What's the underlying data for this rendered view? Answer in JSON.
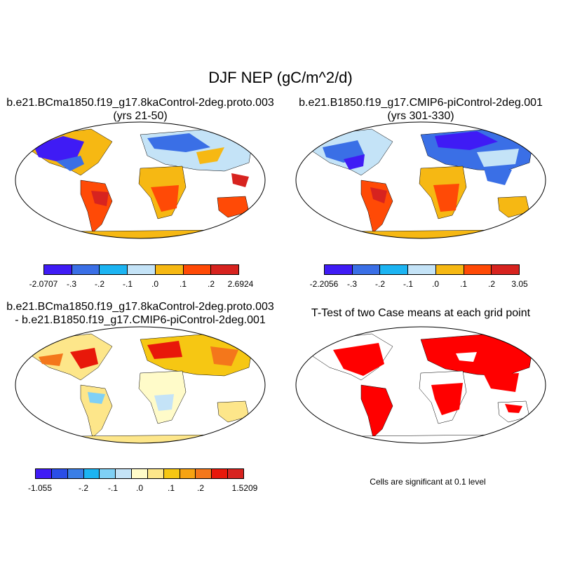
{
  "title": "DJF NEP (gC/m^2/d)",
  "panels": [
    {
      "line1": "b.e21.BCma1850.f19_g17.8kaControl-2deg.proto.003",
      "line2": "(yrs 21-50)",
      "colorbar": {
        "labels": [
          "-2.0707",
          "-.3",
          "-.2",
          "-.1",
          ".0",
          ".1",
          ".2",
          "2.6924"
        ],
        "colors": [
          "#3f1bf5",
          "#3a6fe6",
          "#1cb4f2",
          "#c4e3f7",
          "#f6b813",
          "#ff4a06",
          "#d7231f"
        ]
      }
    },
    {
      "line1": "b.e21.B1850.f19_g17.CMIP6-piControl-2deg.001",
      "line2": "(yrs 301-330)",
      "colorbar": {
        "labels": [
          "-2.2056",
          "-.3",
          "-.2",
          "-.1",
          ".0",
          ".1",
          ".2",
          "3.05"
        ],
        "colors": [
          "#3f1bf5",
          "#3a6fe6",
          "#1cb4f2",
          "#c4e3f7",
          "#f6b813",
          "#ff4a06",
          "#d7231f"
        ]
      }
    },
    {
      "line1": "b.e21.BCma1850.f19_g17.8kaControl-2deg.proto.003",
      "line2": "- b.e21.B1850.f19_g17.CMIP6-piControl-2deg.001",
      "colorbar": {
        "labels": [
          "-1.055",
          "-.2",
          "-.1",
          ".0",
          ".1",
          ".2",
          "1.5209"
        ],
        "colors": [
          "#3f1bf5",
          "#2a4ee8",
          "#3a7ee6",
          "#1cb4f2",
          "#7fd0f5",
          "#c4e3f7",
          "#fffbc9",
          "#fde68a",
          "#f6c713",
          "#f7a312",
          "#f4771b",
          "#e8180a",
          "#d7231f"
        ]
      }
    },
    {
      "line1": "T-Test of two Case means at each grid point",
      "line2": "",
      "note": "Cells are significant at 0.1 level",
      "significance_color": "#ff0000"
    }
  ]
}
